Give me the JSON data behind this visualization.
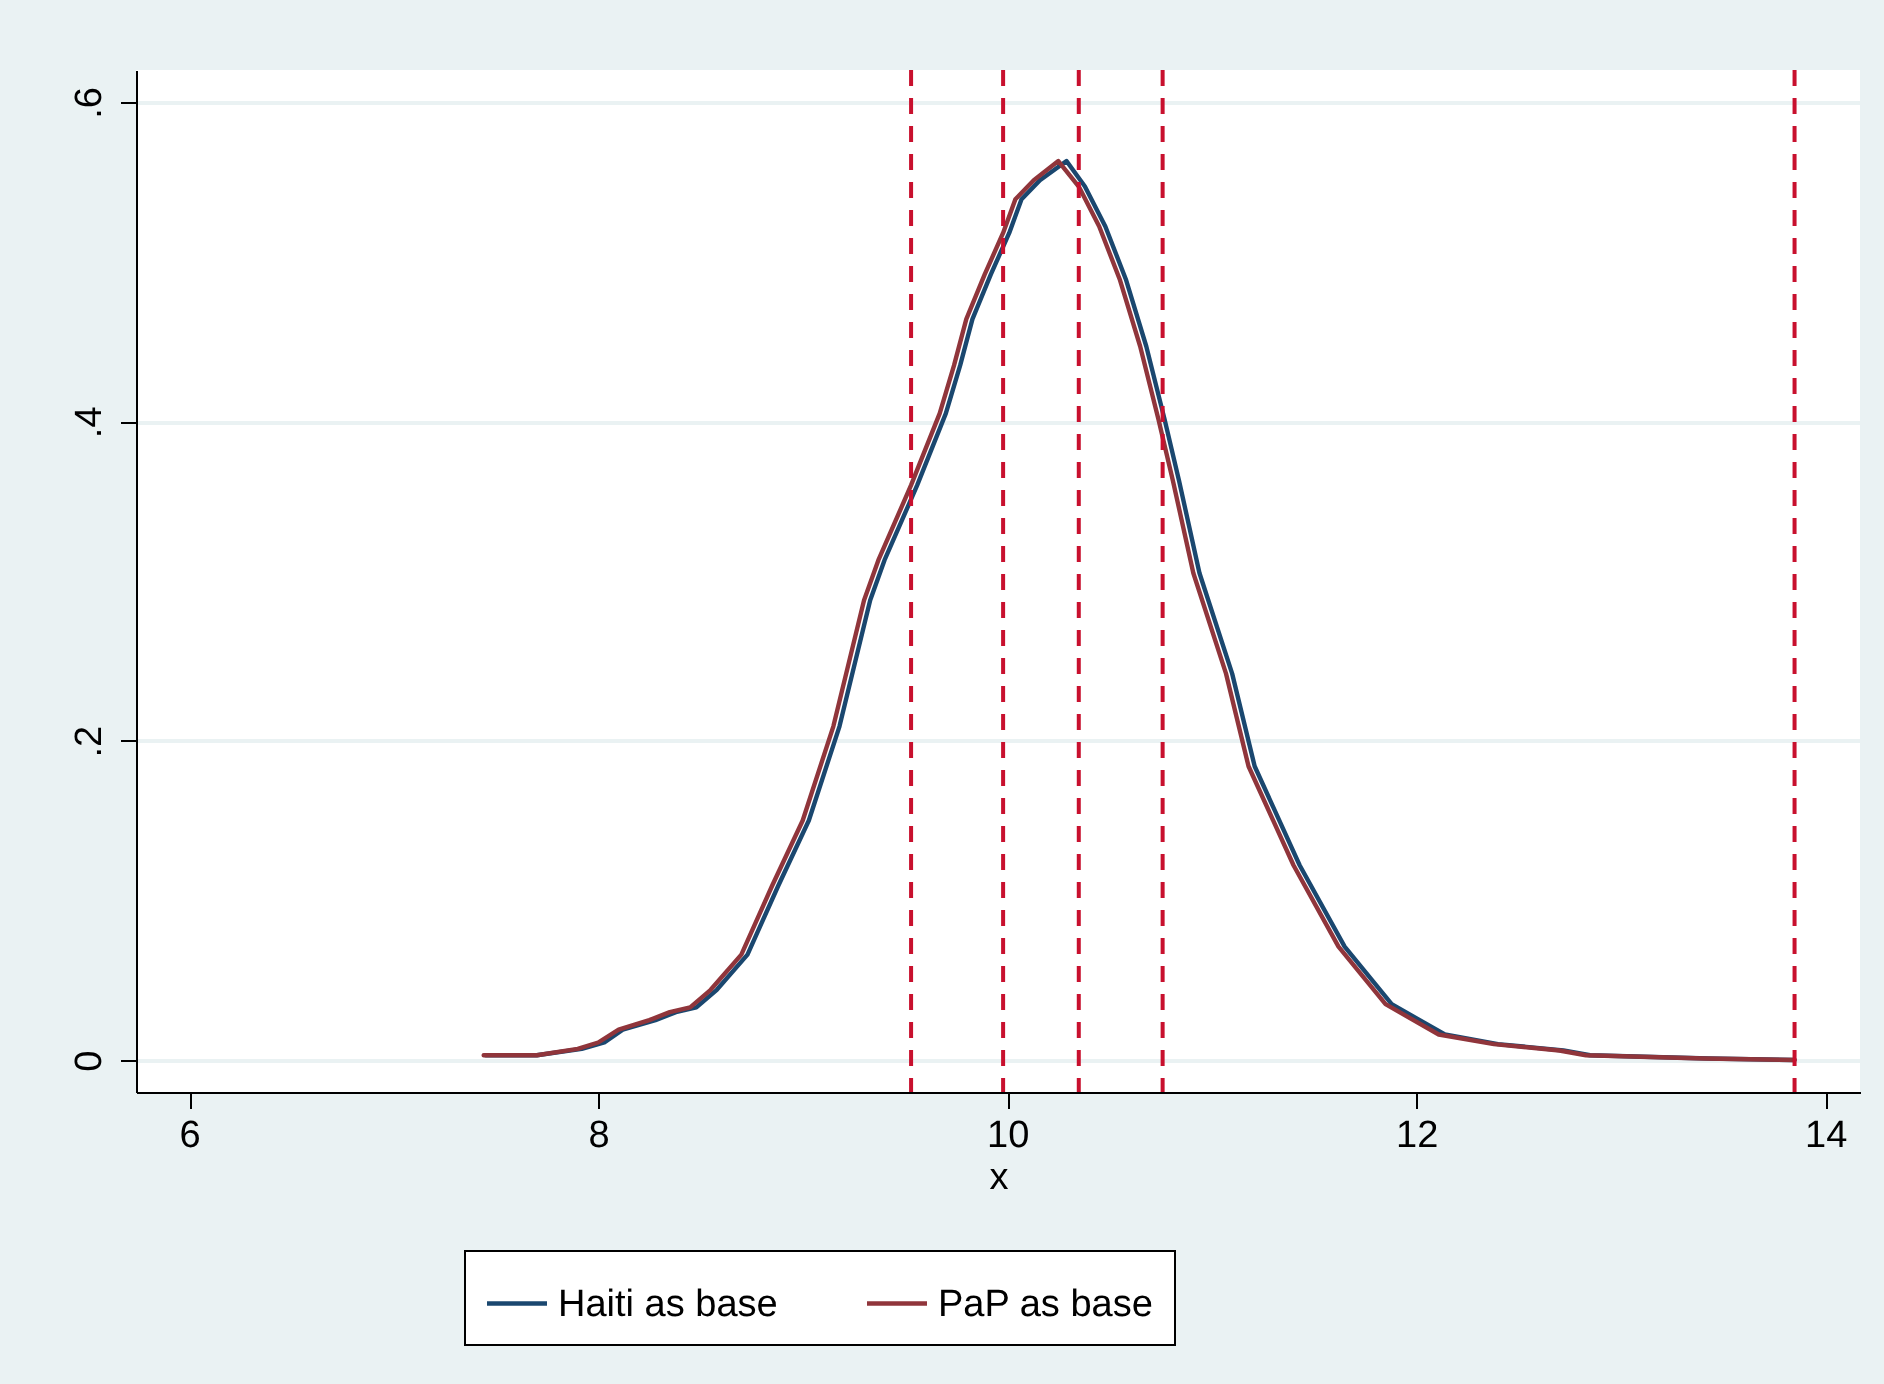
{
  "chart_data": {
    "type": "line",
    "xlabel": "x",
    "xlim": [
      5.74,
      14.17
    ],
    "xticks": [
      6,
      8,
      10,
      12,
      14
    ],
    "ylim": [
      -0.02,
      0.62
    ],
    "yticks": [
      {
        "value": 0,
        "label": "0"
      },
      {
        "value": 0.2,
        "label": ".2"
      },
      {
        "value": 0.4,
        "label": ".4"
      },
      {
        "value": 0.6,
        "label": ".6"
      }
    ],
    "grid": "y",
    "legend": "bottom",
    "marker": "none",
    "line_style": "solid",
    "series": [
      {
        "name": "Haiti as base",
        "color": "#1a476f",
        "x": [
          7.45,
          7.7,
          7.92,
          8.03,
          8.12,
          8.28,
          8.38,
          8.48,
          8.58,
          8.73,
          8.88,
          9.03,
          9.18,
          9.33,
          9.4,
          9.56,
          9.7,
          9.77,
          9.83,
          9.92,
          10.01,
          10.07,
          10.16,
          10.29,
          10.38,
          10.48,
          10.58,
          10.68,
          10.77,
          10.84,
          10.94,
          11.1,
          11.21,
          11.43,
          11.65,
          11.88,
          12.14,
          12.4,
          12.72,
          12.85,
          13.43,
          13.85
        ],
        "values": [
          0.003,
          0.003,
          0.007,
          0.011,
          0.019,
          0.025,
          0.03,
          0.033,
          0.044,
          0.066,
          0.109,
          0.15,
          0.209,
          0.288,
          0.313,
          0.36,
          0.405,
          0.435,
          0.464,
          0.492,
          0.518,
          0.539,
          0.551,
          0.563,
          0.547,
          0.522,
          0.489,
          0.447,
          0.401,
          0.363,
          0.305,
          0.242,
          0.184,
          0.122,
          0.071,
          0.035,
          0.016,
          0.01,
          0.006,
          0.003,
          0.001,
          0
        ]
      },
      {
        "name": "PaP as base",
        "color": "#90353b",
        "x": [
          7.44,
          7.7,
          7.9,
          8.0,
          8.1,
          8.25,
          8.35,
          8.45,
          8.55,
          8.7,
          8.85,
          9.0,
          9.15,
          9.3,
          9.37,
          9.53,
          9.67,
          9.74,
          9.8,
          9.89,
          9.98,
          10.04,
          10.13,
          10.25,
          10.35,
          10.45,
          10.55,
          10.65,
          10.74,
          10.81,
          10.91,
          11.07,
          11.18,
          11.4,
          11.62,
          11.85,
          12.11,
          12.38,
          12.7,
          12.83,
          13.41,
          13.85
        ],
        "values": [
          0.003,
          0.003,
          0.007,
          0.011,
          0.019,
          0.025,
          0.03,
          0.033,
          0.044,
          0.066,
          0.109,
          0.15,
          0.209,
          0.288,
          0.313,
          0.36,
          0.405,
          0.435,
          0.464,
          0.492,
          0.518,
          0.539,
          0.551,
          0.563,
          0.547,
          0.522,
          0.489,
          0.447,
          0.401,
          0.363,
          0.305,
          0.242,
          0.184,
          0.122,
          0.071,
          0.035,
          0.016,
          0.01,
          0.006,
          0.003,
          0.001,
          0
        ]
      }
    ],
    "ref_lines": [
      {
        "axis": "x",
        "value": 9.53,
        "color": "#c8102e",
        "line_style": "dashed"
      },
      {
        "axis": "x",
        "value": 9.98,
        "color": "#c8102e",
        "line_style": "dashed"
      },
      {
        "axis": "x",
        "value": 10.35,
        "color": "#c8102e",
        "line_style": "dashed"
      },
      {
        "axis": "x",
        "value": 10.76,
        "color": "#c8102e",
        "line_style": "dashed"
      },
      {
        "axis": "x",
        "value": 13.85,
        "color": "#c8102e",
        "line_style": "dashed"
      }
    ]
  }
}
